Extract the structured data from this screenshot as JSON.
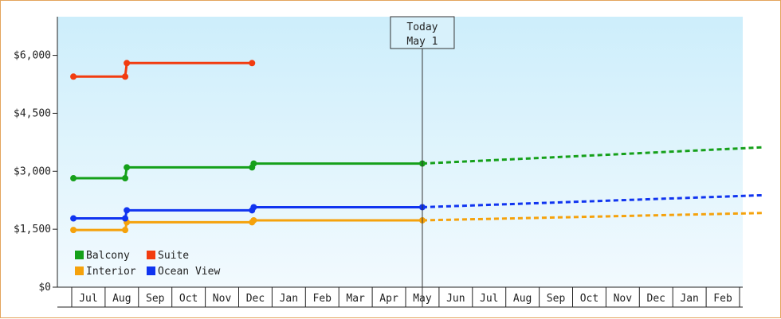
{
  "chart_data": {
    "type": "line",
    "title": "",
    "xlabel": "",
    "ylabel": "",
    "ylim": [
      0,
      7000
    ],
    "yticks": [
      0,
      1500,
      3000,
      4500,
      6000
    ],
    "ytick_labels": [
      "$0",
      "$1,500",
      "$3,000",
      "$4,500",
      "$6,000"
    ],
    "months": [
      "Jul",
      "Aug",
      "Sep",
      "Oct",
      "Nov",
      "Dec",
      "Jan",
      "Feb",
      "Mar",
      "Apr",
      "May",
      "Jun",
      "Jul",
      "Aug",
      "Sep",
      "Oct",
      "Nov",
      "Dec",
      "Jan",
      "Feb"
    ],
    "today": {
      "line1": "Today",
      "line2": "May 1",
      "x": 10.0
    },
    "grid": false,
    "legend_position": "bottom-left",
    "series": [
      {
        "name": "Balcony",
        "color": "#15a01a",
        "points": [
          [
            -0.45,
            2820
          ],
          [
            1.1,
            2820
          ],
          [
            1.15,
            3100
          ],
          [
            4.9,
            3100
          ],
          [
            4.95,
            3200
          ],
          [
            10.0,
            3200
          ]
        ],
        "forecast": [
          [
            10.0,
            3200
          ],
          [
            20.2,
            3620
          ]
        ]
      },
      {
        "name": "Interior",
        "color": "#f5a20c",
        "points": [
          [
            -0.45,
            1480
          ],
          [
            1.1,
            1480
          ],
          [
            1.15,
            1680
          ],
          [
            4.9,
            1680
          ],
          [
            4.95,
            1730
          ],
          [
            10.0,
            1730
          ]
        ],
        "forecast": [
          [
            10.0,
            1730
          ],
          [
            20.2,
            1920
          ]
        ]
      },
      {
        "name": "Suite",
        "color": "#f23c10",
        "points": [
          [
            -0.45,
            5450
          ],
          [
            1.1,
            5450
          ],
          [
            1.15,
            5800
          ],
          [
            4.9,
            5800
          ]
        ],
        "forecast": []
      },
      {
        "name": "Ocean View",
        "color": "#1034f0",
        "points": [
          [
            -0.45,
            1780
          ],
          [
            1.1,
            1780
          ],
          [
            1.15,
            1990
          ],
          [
            4.9,
            1990
          ],
          [
            4.95,
            2070
          ],
          [
            10.0,
            2070
          ]
        ],
        "forecast": [
          [
            10.0,
            2070
          ],
          [
            20.2,
            2380
          ]
        ]
      }
    ]
  }
}
